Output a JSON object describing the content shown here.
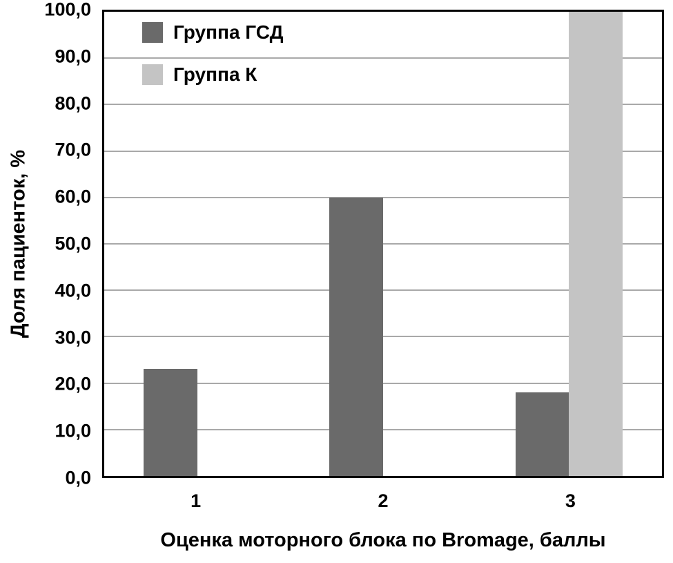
{
  "chart_data": {
    "type": "bar",
    "title": "",
    "categories": [
      "1",
      "2",
      "3"
    ],
    "series": [
      {
        "name": "Группа ГСД",
        "color": "#6a6a6a",
        "values": [
          23,
          60,
          18
        ]
      },
      {
        "name": "Группа К",
        "color": "#c4c4c4",
        "values": [
          0,
          0,
          100
        ]
      }
    ],
    "xlabel": "Оценка моторного блока по Bromage, баллы",
    "ylabel": "Доля пациенток, %",
    "ylim": [
      0,
      100
    ],
    "ytick_step": 10,
    "ytick_labels": [
      "0,0",
      "10,0",
      "20,0",
      "30,0",
      "40,0",
      "50,0",
      "60,0",
      "70,0",
      "80,0",
      "90,0",
      "100,0"
    ],
    "grid": true,
    "legend_position": "top-left-inside"
  },
  "colors": {
    "background": "#ffffff",
    "axis_border": "#000000",
    "gridline": "#a9a9a9",
    "text": "#000000"
  }
}
